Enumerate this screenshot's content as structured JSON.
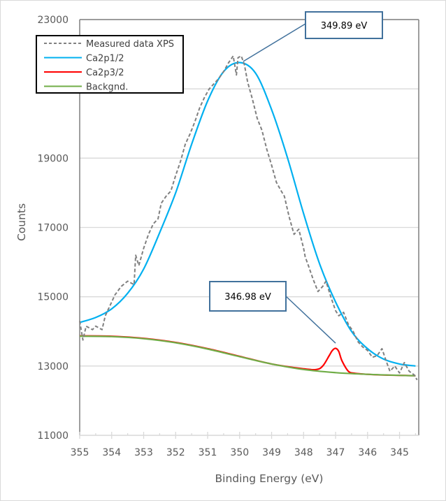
{
  "chart_data": {
    "type": "line",
    "title": "",
    "xlabel": "Binding Energy (eV)",
    "ylabel": "Counts",
    "xlim": [
      355,
      344.4
    ],
    "ylim": [
      11000,
      23000
    ],
    "x_reversed": true,
    "grid": "horizontal",
    "xticks": [
      355,
      354,
      353,
      352,
      351,
      350,
      349,
      348,
      347,
      346,
      345
    ],
    "yticks": [
      11000,
      13000,
      15000,
      17000,
      19000,
      21000,
      23000
    ],
    "yticks_visible": [
      "11000",
      "13000",
      "15000",
      "17000",
      "19000",
      "23000"
    ],
    "legend_position": "top-left",
    "legend": [
      {
        "name": "Measured data XPS",
        "color": "#808080",
        "style": "dashed"
      },
      {
        "name": "Ca2p1/2",
        "color": "#00b0f0",
        "style": "solid"
      },
      {
        "name": "Ca2p3/2",
        "color": "#ff0000",
        "style": "solid"
      },
      {
        "name": "Backgnd.",
        "color": "#70ad47",
        "style": "solid"
      }
    ],
    "series": [
      {
        "name": "Measured data XPS",
        "color": "#808080",
        "x": [
          355.0,
          354.9,
          354.8,
          354.6,
          354.5,
          354.3,
          354.2,
          354.0,
          353.9,
          353.7,
          353.5,
          353.3,
          353.25,
          353.15,
          353.0,
          352.85,
          352.7,
          352.55,
          352.45,
          352.3,
          352.15,
          352.0,
          351.85,
          351.7,
          351.55,
          351.4,
          351.25,
          351.1,
          350.95,
          350.8,
          350.65,
          350.5,
          350.35,
          350.2,
          350.1,
          350.05,
          349.95,
          349.85,
          349.75,
          349.6,
          349.45,
          349.3,
          349.15,
          349.0,
          348.85,
          348.7,
          348.6,
          348.45,
          348.3,
          348.15,
          348.0,
          347.95,
          347.85,
          347.7,
          347.55,
          347.4,
          347.3,
          347.15,
          347.0,
          346.9,
          346.75,
          346.6,
          346.45,
          346.3,
          346.15,
          346.0,
          345.85,
          345.7,
          345.55,
          345.4,
          345.3,
          345.15,
          345.0,
          344.85,
          344.7,
          344.55,
          344.45
        ],
        "y": [
          14300,
          13750,
          14150,
          14050,
          14150,
          14050,
          14450,
          14850,
          15050,
          15300,
          15450,
          15350,
          16200,
          15900,
          16400,
          16800,
          17100,
          17250,
          17700,
          17900,
          18050,
          18500,
          18900,
          19400,
          19700,
          20050,
          20450,
          20750,
          21000,
          21150,
          21300,
          21500,
          21750,
          21950,
          21400,
          21900,
          21950,
          21700,
          21200,
          20700,
          20150,
          19800,
          19250,
          18800,
          18300,
          18050,
          17900,
          17300,
          16800,
          16950,
          16400,
          16150,
          15900,
          15500,
          15150,
          15300,
          15450,
          15000,
          14600,
          14450,
          14550,
          14200,
          14000,
          13700,
          13550,
          13450,
          13250,
          13300,
          13500,
          13100,
          12850,
          13000,
          12800,
          13100,
          12850,
          12750,
          12600
        ]
      },
      {
        "name": "Ca2p1/2",
        "color": "#00b0f0",
        "peak_center": 349.89,
        "x": [
          355.0,
          354.5,
          354.0,
          353.5,
          353.0,
          352.5,
          352.0,
          351.5,
          351.0,
          350.5,
          350.0,
          349.5,
          349.0,
          348.5,
          348.0,
          347.5,
          347.0,
          346.5,
          346.0,
          345.5,
          345.0,
          344.5
        ],
        "y": [
          14260,
          14400,
          14650,
          15100,
          15800,
          16850,
          18000,
          19400,
          20650,
          21500,
          21760,
          21450,
          20400,
          19000,
          17400,
          15950,
          14850,
          14000,
          13500,
          13200,
          13060,
          13000
        ]
      },
      {
        "name": "Ca2p3/2",
        "color": "#ff0000",
        "peak_center": 346.98,
        "x": [
          355.0,
          354.0,
          353.0,
          352.0,
          351.0,
          350.0,
          349.0,
          348.0,
          347.6,
          347.4,
          347.2,
          347.1,
          347.0,
          346.9,
          346.8,
          346.6,
          346.4,
          346.0,
          345.5,
          345.0,
          344.5
        ],
        "y": [
          13870,
          13860,
          13800,
          13680,
          13500,
          13280,
          13060,
          12920,
          12900,
          13000,
          13300,
          13450,
          13510,
          13420,
          13150,
          12850,
          12790,
          12760,
          12740,
          12730,
          12720
        ]
      },
      {
        "name": "Backgnd.",
        "color": "#70ad47",
        "x": [
          355.0,
          354.0,
          353.0,
          352.0,
          351.0,
          350.0,
          349.0,
          348.0,
          347.0,
          346.0,
          345.0,
          344.5
        ],
        "y": [
          13860,
          13850,
          13790,
          13670,
          13490,
          13270,
          13060,
          12900,
          12810,
          12760,
          12730,
          12720
        ]
      }
    ],
    "annotations": [
      {
        "text": "349.89 eV",
        "points_to": {
          "x": 349.89,
          "y": 21750
        }
      },
      {
        "text": "346.98 eV",
        "points_to": {
          "x": 347.0,
          "y": 13500
        }
      }
    ]
  }
}
